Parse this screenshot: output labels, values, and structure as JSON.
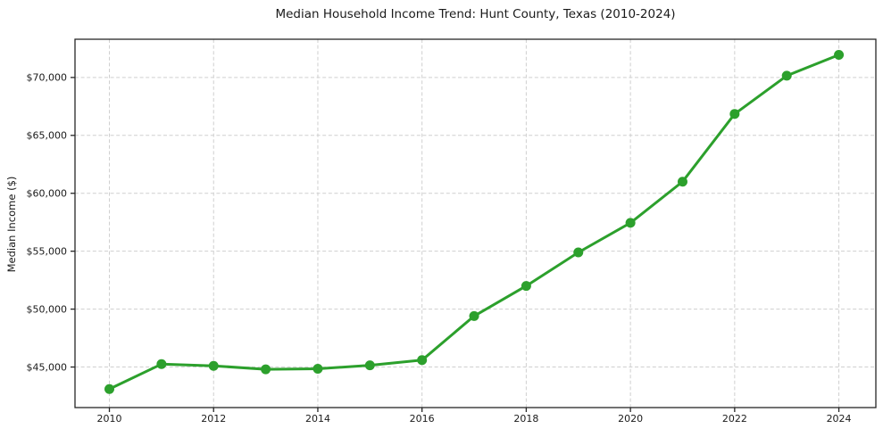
{
  "chart_data": {
    "type": "line",
    "title": "Median Household Income Trend: Hunt County, Texas (2010-2024)",
    "xlabel": "",
    "ylabel": "Median Income ($)",
    "series": [
      {
        "name": "Median Household Income",
        "x": [
          2010,
          2011,
          2012,
          2013,
          2014,
          2015,
          2016,
          2017,
          2018,
          2019,
          2020,
          2021,
          2022,
          2023,
          2024
        ],
        "values": [
          43100,
          45250,
          45100,
          44800,
          44850,
          45150,
          45600,
          49400,
          52000,
          54900,
          57450,
          61000,
          66850,
          70150,
          71950
        ],
        "color": "#2ca02c",
        "marker": "circle"
      }
    ],
    "xticks": [
      2010,
      2012,
      2014,
      2016,
      2018,
      2020,
      2022,
      2024
    ],
    "xtick_labels": [
      "2010",
      "2012",
      "2014",
      "2016",
      "2018",
      "2020",
      "2022",
      "2024"
    ],
    "yticks": [
      45000,
      50000,
      55000,
      60000,
      65000,
      70000
    ],
    "ytick_labels": [
      "$45,000",
      "$50,000",
      "$55,000",
      "$60,000",
      "$65,000",
      "$70,000"
    ],
    "xlim": [
      2009.34,
      2024.71
    ],
    "ylim": [
      41500,
      73300
    ],
    "grid": true,
    "grid_style": "dashed",
    "legend_position": "none",
    "line_width": 3,
    "marker_diameter": 11
  },
  "colors": {
    "line": "#2ca02c",
    "grid": "#cfcfcf",
    "spine": "#262626",
    "text": "#1a1a1a",
    "background": "#ffffff"
  }
}
